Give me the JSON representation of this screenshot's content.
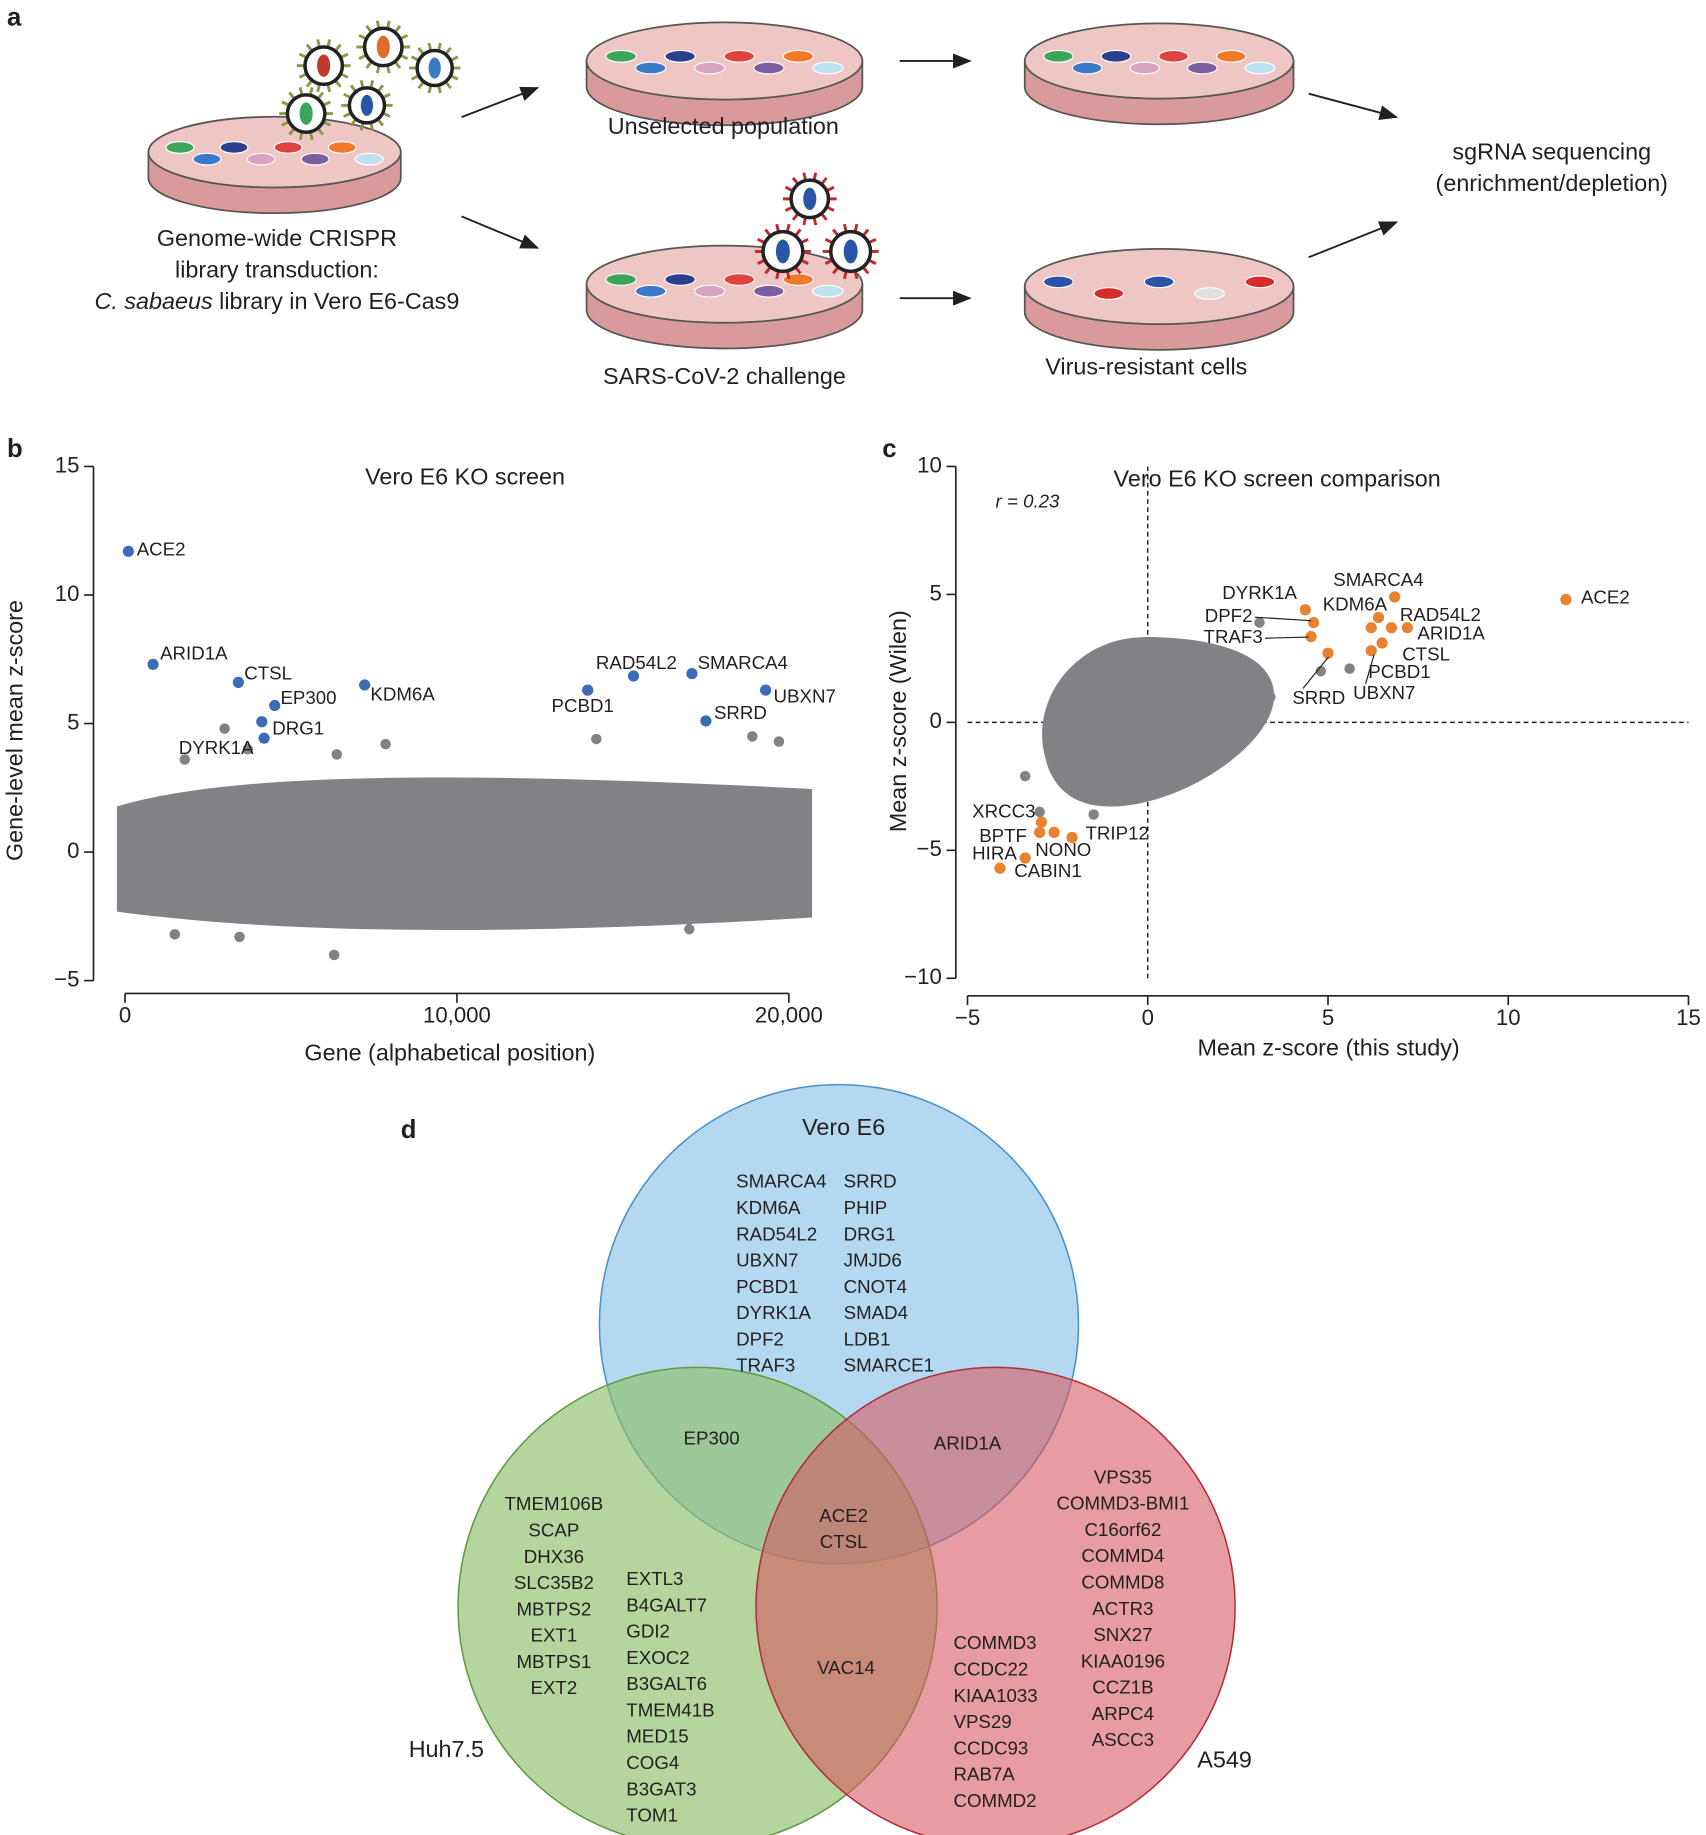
{
  "panels": [
    "a",
    "b",
    "c",
    "d"
  ],
  "panel_a": {
    "library": [
      "Genome-wide CRISPR",
      "library transduction:"
    ],
    "library_italic": "C. sabaeus",
    "library_rest": " library in Vero E6-Cas9",
    "unselected": "Unselected population",
    "challenge": "SARS-CoV-2 challenge",
    "resistant": "Virus-resistant cells",
    "sequencing": [
      "sgRNA sequencing",
      "(enrichment/depletion)"
    ]
  },
  "chart_data": [
    {
      "type": "scatter",
      "title": "Vero E6 KO screen",
      "xlabel": "Gene (alphabetical position)",
      "ylabel": "Gene-level mean z-score",
      "xlim": [
        -950,
        20700
      ],
      "ylim": [
        -5.5,
        15
      ],
      "xticks": [
        0,
        {
          "value": 10000,
          "label": "10,000"
        },
        {
          "value": 20000,
          "label": "20,000"
        }
      ],
      "yticks": [
        {
          "value": -5,
          "label": "−5"
        },
        0,
        5,
        10,
        15
      ],
      "color": "#3a6db5",
      "background_color": "#808285",
      "points": [
        {
          "label": "ACE2",
          "x": 100,
          "y": 11.7
        },
        {
          "label": "ARID1A",
          "x": 845,
          "y": 7.3
        },
        {
          "label": "CTSL",
          "x": 3415,
          "y": 6.6
        },
        {
          "label": "EP300",
          "x": 4510,
          "y": 5.7
        },
        {
          "label": "DRG1",
          "x": 4120,
          "y": 5.07
        },
        {
          "label": "DYRK1A",
          "x": 4190,
          "y": 4.43
        },
        {
          "label": "KDM6A",
          "x": 7220,
          "y": 6.5
        },
        {
          "label": "PCBD1",
          "x": 13940,
          "y": 6.3
        },
        {
          "label": "RAD54L2",
          "x": 15320,
          "y": 6.85
        },
        {
          "label": "SMARCA4",
          "x": 17080,
          "y": 6.94
        },
        {
          "label": "SRRD",
          "x": 17500,
          "y": 5.1
        },
        {
          "label": "UBXN7",
          "x": 19300,
          "y": 6.3
        }
      ],
      "background_points": [
        {
          "x": 3000,
          "y": 4.8
        },
        {
          "x": 6380,
          "y": 3.8
        },
        {
          "x": 7850,
          "y": 4.2
        },
        {
          "x": 14200,
          "y": 4.4
        },
        {
          "x": 18900,
          "y": 4.5
        },
        {
          "x": 19700,
          "y": 4.3
        },
        {
          "x": 3700,
          "y": 4.0
        },
        {
          "x": 1800,
          "y": 3.6
        },
        {
          "x": 6300,
          "y": -4.0
        },
        {
          "x": 3450,
          "y": -3.3
        },
        {
          "x": 1500,
          "y": -3.2
        },
        {
          "x": 17000,
          "y": -3.0
        }
      ]
    },
    {
      "type": "scatter",
      "title": "Vero E6 KO screen comparison",
      "xlabel": "Mean z-score (this study)",
      "ylabel": "Mean z-score (Wilen)",
      "annotation": "r = 0.23",
      "xlim": [
        -5,
        15
      ],
      "ylim": [
        -10,
        10
      ],
      "xticks": [
        {
          "value": -5,
          "label": "−5"
        },
        0,
        5,
        10,
        15
      ],
      "yticks": [
        {
          "value": -10,
          "label": "−10"
        },
        {
          "value": -5,
          "label": "−5"
        },
        0,
        5,
        10
      ],
      "color": "#e8822e",
      "background_color": "#808285",
      "points": [
        {
          "label": "ACE2",
          "x": 11.6,
          "y": 4.8
        },
        {
          "label": "SMARCA4",
          "x": 6.85,
          "y": 4.9
        },
        {
          "label": "KDM6A",
          "x": 6.4,
          "y": 4.1
        },
        {
          "label": "DYRK1A",
          "x": 4.37,
          "y": 4.4
        },
        {
          "label": "DPF2",
          "x": 4.6,
          "y": 3.9
        },
        {
          "label": "TRAF3",
          "x": 4.53,
          "y": 3.35
        },
        {
          "label": "RAD54L2",
          "x": 6.76,
          "y": 3.7
        },
        {
          "label": "ARID1A",
          "x": 7.2,
          "y": 3.7
        },
        {
          "label": "CTSL",
          "x": 6.5,
          "y": 3.1
        },
        {
          "label": "PCBD1",
          "x": 6.2,
          "y": 2.8
        },
        {
          "label": "UBXN7",
          "x": 6.2,
          "y": 3.7
        },
        {
          "label": "SRRD",
          "x": 5.0,
          "y": 2.7
        },
        {
          "label": "XRCC3",
          "x": -2.95,
          "y": -3.9
        },
        {
          "label": "BPTF",
          "x": -3.0,
          "y": -4.3
        },
        {
          "label": "NONO",
          "x": -2.6,
          "y": -4.3
        },
        {
          "label": "TRIP12",
          "x": -2.1,
          "y": -4.5
        },
        {
          "label": "HIRA",
          "x": -4.1,
          "y": -5.7
        },
        {
          "label": "CABIN1",
          "x": -3.4,
          "y": -5.3
        }
      ],
      "background_points": [
        {
          "x": 3.1,
          "y": 3.9
        },
        {
          "x": 4.8,
          "y": 2.0
        },
        {
          "x": 5.6,
          "y": 2.1
        },
        {
          "x": -3.4,
          "y": -2.1
        },
        {
          "x": -3.0,
          "y": -3.5
        },
        {
          "x": -1.5,
          "y": -3.6
        },
        {
          "x": 3.4,
          "y": 1.0
        }
      ]
    }
  ],
  "venn": {
    "sets": [
      "Vero E6",
      "Huh7.5",
      "A549"
    ],
    "vero_only": [
      [
        "SMARCA4",
        "KDM6A",
        "RAD54L2",
        "UBXN7",
        "PCBD1",
        "DYRK1A",
        "DPF2",
        "TRAF3"
      ],
      [
        "SRRD",
        "PHIP",
        "DRG1",
        "JMJD6",
        "CNOT4",
        "SMAD4",
        "LDB1",
        "SMARCE1"
      ]
    ],
    "vero_huh": [
      "EP300"
    ],
    "vero_a549": [
      "ARID1A"
    ],
    "all": [
      "ACE2",
      "CTSL"
    ],
    "huh_a549": [
      "VAC14"
    ],
    "huh_only": [
      [
        "TMEM106B",
        "SCAP",
        "DHX36",
        "SLC35B2",
        "MBTPS2",
        "EXT1",
        "MBTPS1",
        "EXT2"
      ],
      [
        "EXTL3",
        "B4GALT7",
        "GDI2",
        "EXOC2",
        "B3GALT6",
        "TMEM41B",
        "MED15",
        "COG4",
        "B3GAT3",
        "TOM1"
      ]
    ],
    "a549_only": [
      [
        "VPS35",
        "COMMD3-BMI1",
        "C16orf62",
        "COMMD4",
        "COMMD8",
        "ACTR3",
        "SNX27",
        "KIAA0196",
        "CCZ1B",
        "ARPC4",
        "ASCC3"
      ],
      [
        "COMMD3",
        "CCDC22",
        "KIAA1033",
        "VPS29",
        "CCDC93",
        "RAB7A",
        "COMMD2"
      ]
    ]
  }
}
